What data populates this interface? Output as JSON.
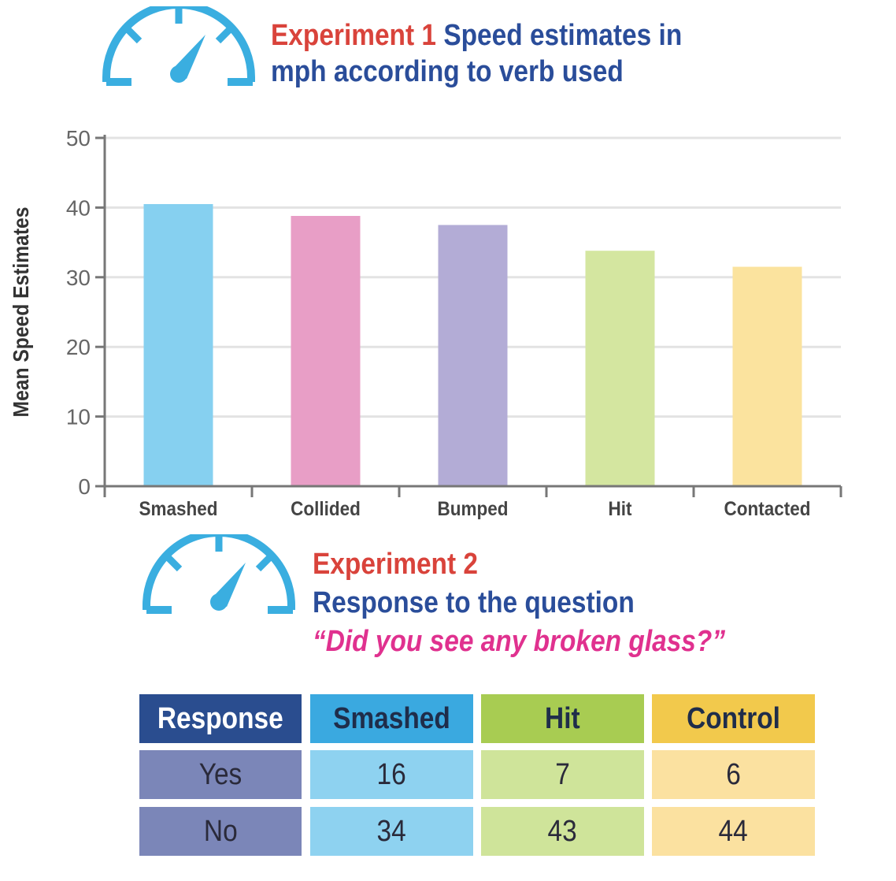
{
  "experiment1": {
    "label": "Experiment 1",
    "title_line1": "Speed estimates in",
    "title_line2": "mph according to verb used"
  },
  "experiment2": {
    "label": "Experiment 2",
    "subtitle": "Response to the question",
    "question": "“Did you see any broken glass?”"
  },
  "icons": [
    "speedometer-icon",
    "speedometer-icon"
  ],
  "colors": {
    "accent_red": "#d9433b",
    "accent_blue": "#2a4d9a",
    "accent_pink": "#e0318f",
    "gauge": "#3aaee0"
  },
  "chart_data": {
    "type": "bar",
    "title": "Speed estimates in mph according to verb used",
    "categories": [
      "Smashed",
      "Collided",
      "Bumped",
      "Hit",
      "Contacted"
    ],
    "values": [
      40.5,
      38.8,
      37.5,
      33.8,
      31.5
    ],
    "colors": [
      "#86d0f0",
      "#e89ec6",
      "#b3acd6",
      "#d4e6a0",
      "#fbe39e"
    ],
    "xlabel": "",
    "ylabel": "Mean Speed Estimates",
    "ylim": [
      0,
      50
    ],
    "yticks": [
      "0",
      "10",
      "20",
      "30",
      "40",
      "50"
    ],
    "grid": true
  },
  "table": {
    "headers": [
      "Response",
      "Smashed",
      "Hit",
      "Control"
    ],
    "rows": [
      [
        "Yes",
        "16",
        "7",
        "6"
      ],
      [
        "No",
        "34",
        "43",
        "44"
      ]
    ]
  }
}
